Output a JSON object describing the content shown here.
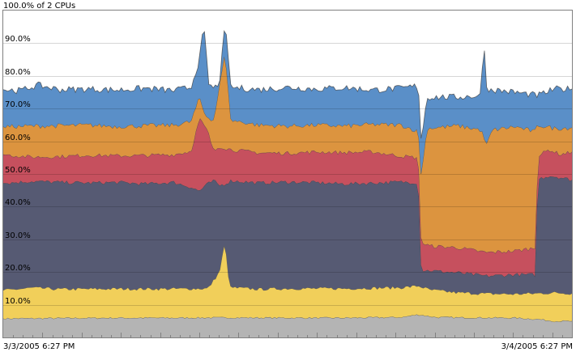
{
  "chart_data": {
    "type": "area",
    "stacked": true,
    "title": "100.0% of 2 CPUs",
    "xlabel": "",
    "ylabel": "",
    "ylim": [
      0,
      100
    ],
    "yticks": [
      "10.0%",
      "20.0%",
      "30.0%",
      "40.0%",
      "50.0%",
      "60.0%",
      "70.0%",
      "80.0%",
      "90.0%"
    ],
    "ytick_values": [
      10,
      20,
      30,
      40,
      50,
      60,
      70,
      80,
      90
    ],
    "xlim": [
      0,
      1
    ],
    "x_start_label": "3/3/2005 6:27 PM",
    "x_end_label": "3/4/2005 6:27 PM",
    "grid": true,
    "legend": "none",
    "series": [
      {
        "color": "#b4b4b4",
        "points": [
          [
            0,
            5.8
          ],
          [
            0.1,
            5.9
          ],
          [
            0.2,
            6.0
          ],
          [
            0.3,
            6.0
          ],
          [
            0.4,
            6.1
          ],
          [
            0.5,
            6.0
          ],
          [
            0.6,
            6.0
          ],
          [
            0.7,
            6.2
          ],
          [
            0.73,
            7.0
          ],
          [
            0.76,
            6.2
          ],
          [
            0.8,
            6.1
          ],
          [
            0.9,
            6.0
          ],
          [
            0.94,
            5.6
          ],
          [
            0.97,
            5.0
          ],
          [
            1.0,
            5.0
          ]
        ]
      },
      {
        "color": "#f1cf5a",
        "points": [
          [
            0,
            14.4
          ],
          [
            0.05,
            15.2
          ],
          [
            0.1,
            14.8
          ],
          [
            0.2,
            14.9
          ],
          [
            0.3,
            14.9
          ],
          [
            0.36,
            15.0
          ],
          [
            0.38,
            20.0
          ],
          [
            0.39,
            29.5
          ],
          [
            0.395,
            20.0
          ],
          [
            0.4,
            15.3
          ],
          [
            0.45,
            14.8
          ],
          [
            0.5,
            15.0
          ],
          [
            0.6,
            15.0
          ],
          [
            0.7,
            15.3
          ],
          [
            0.73,
            15.8
          ],
          [
            0.75,
            14.6
          ],
          [
            0.8,
            13.7
          ],
          [
            0.85,
            13.4
          ],
          [
            0.9,
            13.3
          ],
          [
            0.94,
            13.5
          ],
          [
            0.97,
            13.7
          ],
          [
            1.0,
            13.5
          ]
        ]
      },
      {
        "color": "#565a73",
        "points": [
          [
            0,
            47.2
          ],
          [
            0.05,
            47.8
          ],
          [
            0.1,
            47.5
          ],
          [
            0.15,
            47.3
          ],
          [
            0.2,
            47.5
          ],
          [
            0.25,
            47.0
          ],
          [
            0.3,
            47.5
          ],
          [
            0.33,
            46.0
          ],
          [
            0.345,
            44.8
          ],
          [
            0.355,
            46.5
          ],
          [
            0.37,
            48.0
          ],
          [
            0.38,
            46.5
          ],
          [
            0.39,
            47.0
          ],
          [
            0.4,
            48.0
          ],
          [
            0.45,
            47.3
          ],
          [
            0.5,
            47.6
          ],
          [
            0.55,
            47.4
          ],
          [
            0.6,
            47.0
          ],
          [
            0.65,
            47.3
          ],
          [
            0.7,
            47.6
          ],
          [
            0.73,
            47.4
          ],
          [
            0.735,
            20.5
          ],
          [
            0.75,
            20.5
          ],
          [
            0.8,
            19.8
          ],
          [
            0.85,
            18.8
          ],
          [
            0.9,
            19.3
          ],
          [
            0.935,
            19.2
          ],
          [
            0.94,
            48.5
          ],
          [
            0.96,
            49.5
          ],
          [
            0.98,
            49.0
          ],
          [
            1.0,
            48.2
          ]
        ]
      },
      {
        "color": "#c6505e",
        "points": [
          [
            0,
            56.0
          ],
          [
            0.05,
            55.2
          ],
          [
            0.1,
            55.4
          ],
          [
            0.15,
            55.8
          ],
          [
            0.2,
            55.6
          ],
          [
            0.25,
            55.7
          ],
          [
            0.3,
            56.0
          ],
          [
            0.33,
            57.0
          ],
          [
            0.345,
            67.0
          ],
          [
            0.36,
            63.0
          ],
          [
            0.37,
            57.0
          ],
          [
            0.38,
            58.5
          ],
          [
            0.4,
            57.5
          ],
          [
            0.45,
            56.5
          ],
          [
            0.5,
            56.4
          ],
          [
            0.55,
            56.8
          ],
          [
            0.6,
            56.6
          ],
          [
            0.65,
            56.8
          ],
          [
            0.7,
            55.5
          ],
          [
            0.73,
            55.0
          ],
          [
            0.735,
            29.0
          ],
          [
            0.75,
            28.0
          ],
          [
            0.8,
            27.5
          ],
          [
            0.85,
            26.0
          ],
          [
            0.9,
            26.5
          ],
          [
            0.935,
            27.5
          ],
          [
            0.94,
            55.5
          ],
          [
            0.96,
            57.5
          ],
          [
            0.98,
            56.0
          ],
          [
            1.0,
            56.8
          ]
        ]
      },
      {
        "color": "#dc943f",
        "points": [
          [
            0,
            64.5
          ],
          [
            0.05,
            64.7
          ],
          [
            0.1,
            64.8
          ],
          [
            0.15,
            65.0
          ],
          [
            0.2,
            64.6
          ],
          [
            0.25,
            64.8
          ],
          [
            0.3,
            65.0
          ],
          [
            0.33,
            66.0
          ],
          [
            0.345,
            73.5
          ],
          [
            0.355,
            68.0
          ],
          [
            0.37,
            66.5
          ],
          [
            0.385,
            82.0
          ],
          [
            0.39,
            87.0
          ],
          [
            0.395,
            78.0
          ],
          [
            0.4,
            66.5
          ],
          [
            0.45,
            65.0
          ],
          [
            0.5,
            64.7
          ],
          [
            0.55,
            65.0
          ],
          [
            0.6,
            64.7
          ],
          [
            0.65,
            65.2
          ],
          [
            0.7,
            65.0
          ],
          [
            0.73,
            63.0
          ],
          [
            0.735,
            49.5
          ],
          [
            0.745,
            64.0
          ],
          [
            0.8,
            64.8
          ],
          [
            0.84,
            63.5
          ],
          [
            0.85,
            59.0
          ],
          [
            0.86,
            63.5
          ],
          [
            0.9,
            64.5
          ],
          [
            0.935,
            63.0
          ],
          [
            0.94,
            65.0
          ],
          [
            0.97,
            64.0
          ],
          [
            1.0,
            64.2
          ]
        ]
      },
      {
        "color": "#5a8fc8",
        "points": [
          [
            0,
            75.8
          ],
          [
            0.03,
            75.5
          ],
          [
            0.06,
            77.2
          ],
          [
            0.1,
            75.8
          ],
          [
            0.15,
            76.0
          ],
          [
            0.2,
            75.7
          ],
          [
            0.25,
            76.2
          ],
          [
            0.3,
            75.5
          ],
          [
            0.33,
            76.5
          ],
          [
            0.345,
            85.0
          ],
          [
            0.35,
            92.0
          ],
          [
            0.355,
            93.0
          ],
          [
            0.36,
            78.0
          ],
          [
            0.37,
            76.0
          ],
          [
            0.38,
            78.0
          ],
          [
            0.39,
            95.5
          ],
          [
            0.395,
            88.0
          ],
          [
            0.4,
            76.5
          ],
          [
            0.45,
            75.8
          ],
          [
            0.5,
            76.5
          ],
          [
            0.55,
            76.0
          ],
          [
            0.6,
            76.4
          ],
          [
            0.65,
            75.7
          ],
          [
            0.7,
            76.2
          ],
          [
            0.73,
            77.0
          ],
          [
            0.735,
            60.0
          ],
          [
            0.745,
            73.5
          ],
          [
            0.8,
            73.5
          ],
          [
            0.84,
            74.0
          ],
          [
            0.845,
            92.5
          ],
          [
            0.85,
            76.0
          ],
          [
            0.9,
            75.0
          ],
          [
            0.94,
            74.0
          ],
          [
            0.97,
            76.0
          ],
          [
            1.0,
            76.0
          ]
        ]
      }
    ]
  }
}
